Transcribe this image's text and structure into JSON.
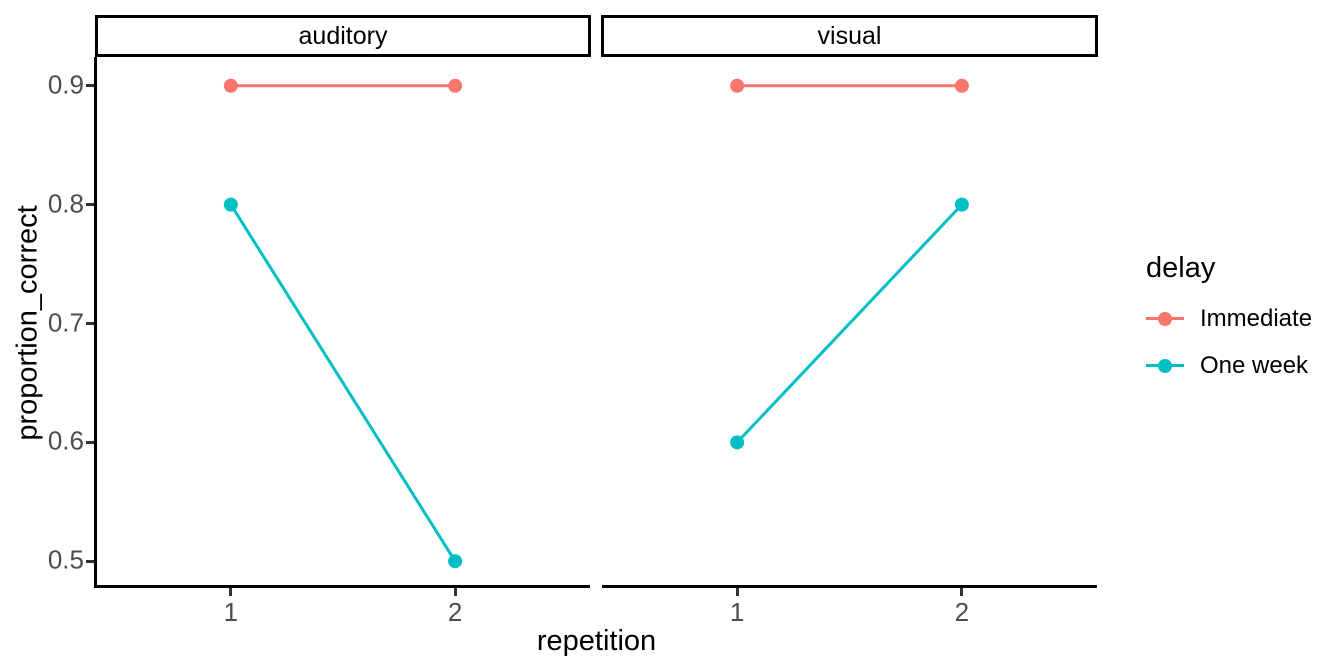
{
  "legend": {
    "title": "delay",
    "position": "right",
    "entries": [
      {
        "label": "Immediate",
        "color": "#F8766D"
      },
      {
        "label": "One week",
        "color": "#00BFC4"
      }
    ]
  },
  "chart_data": {
    "type": "line",
    "facet_labels": [
      "auditory",
      "visual"
    ],
    "x": [
      1,
      2
    ],
    "x_tick_labels": [
      "1",
      "2"
    ],
    "xlabel": "repetition",
    "ylabel": "proportion_correct",
    "ylim": [
      0.48,
      0.92
    ],
    "y_ticks": [
      0.5,
      0.6,
      0.7,
      0.8,
      0.9
    ],
    "y_tick_labels": [
      "0.5",
      "0.6",
      "0.7",
      "0.8",
      "0.9"
    ],
    "grid": false,
    "legend_title": "delay",
    "legend_position": "right",
    "point_radius": 7,
    "line_width": 3,
    "facets": [
      {
        "label": "auditory",
        "series": [
          {
            "name": "Immediate",
            "color": "#F8766D",
            "values": [
              0.9,
              0.9
            ]
          },
          {
            "name": "One week",
            "color": "#00BFC4",
            "values": [
              0.8,
              0.5
            ]
          }
        ]
      },
      {
        "label": "visual",
        "series": [
          {
            "name": "Immediate",
            "color": "#F8766D",
            "values": [
              0.9,
              0.9
            ]
          },
          {
            "name": "One week",
            "color": "#00BFC4",
            "values": [
              0.6,
              0.8
            ]
          }
        ]
      }
    ]
  }
}
